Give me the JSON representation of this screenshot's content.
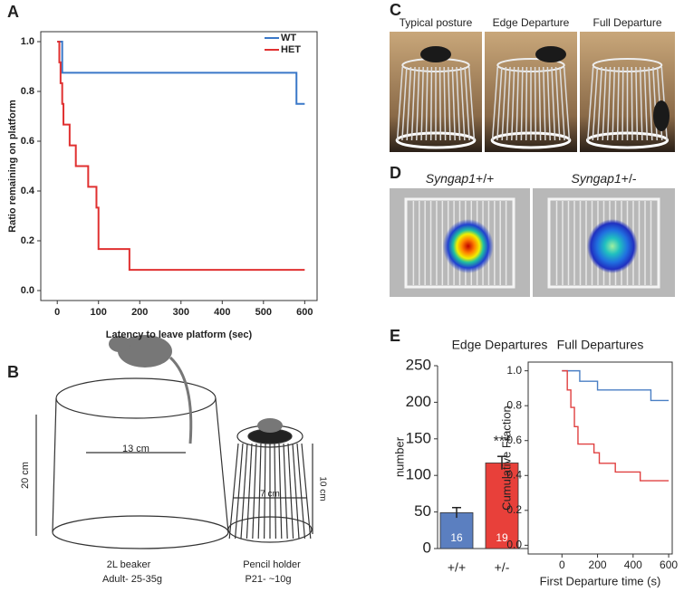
{
  "panel_labels": [
    "A",
    "B",
    "C",
    "D",
    "E"
  ],
  "panel_b": {
    "beaker_height": "20 cm",
    "beaker_width": "13 cm",
    "holder_width": "7 cm",
    "holder_height": "10 cm",
    "beaker_caption": [
      "2L beaker",
      "Adult- 25-35g"
    ],
    "holder_caption": [
      "Pencil holder",
      "P21- ~10g"
    ]
  },
  "panel_c": {
    "photos": [
      "Typical posture",
      "Edge Departure",
      "Full Departure"
    ]
  },
  "panel_d": {
    "genotypes": [
      {
        "gene": "Syngap1",
        "genotype": "+/+"
      },
      {
        "gene": "Syngap1",
        "genotype": "+/-"
      }
    ]
  },
  "chart_data": [
    {
      "type": "step",
      "y_label": "Ratio remaining on platform",
      "x_label": "Latency to leave platform (sec)",
      "xlim": [
        -40,
        630
      ],
      "ylim": [
        -0.04,
        1.04
      ],
      "xticks": [
        0,
        100,
        200,
        300,
        400,
        500,
        600
      ],
      "yticks": [
        {
          "value": 0,
          "label": "0.0"
        },
        0.2,
        0.4,
        0.6,
        0.8,
        {
          "value": 1,
          "label": "1.0"
        }
      ],
      "legend": "upper right",
      "series": [
        {
          "name": "WT",
          "color": "#3a78c8",
          "x": [
            0,
            12,
            580,
            600
          ],
          "values": [
            1,
            0.875,
            0.75,
            0.75
          ]
        },
        {
          "name": "HET",
          "color": "#e03030",
          "x": [
            0,
            5,
            8,
            12,
            15,
            30,
            45,
            75,
            95,
            100,
            175,
            600
          ],
          "values": [
            1,
            0.917,
            0.833,
            0.75,
            0.667,
            0.583,
            0.5,
            0.417,
            0.333,
            0.167,
            0.083,
            0.083
          ]
        }
      ]
    },
    {
      "type": "bar",
      "title": "Edge Departures",
      "y_label": "number",
      "ylim": [
        0,
        250
      ],
      "yticks": [
        0,
        50,
        100,
        150,
        200,
        250
      ],
      "categories": [
        "+/+",
        "+/-"
      ],
      "values": [
        49,
        117
      ],
      "errors": [
        7,
        9
      ],
      "colors": [
        "#5b7fc0",
        "#e8403a"
      ],
      "counts": [
        16,
        19
      ],
      "significance": "***"
    },
    {
      "type": "step",
      "title": "Full Departures",
      "y_label": "Cumulative Fraction",
      "x_label": "First Departure time (s)",
      "xlim": [
        -190,
        620
      ],
      "ylim": [
        -0.05,
        1.05
      ],
      "xticks": [
        0,
        200,
        400,
        600
      ],
      "yticks": [
        {
          "value": 0,
          "label": "0.0"
        },
        0.2,
        0.4,
        0.6,
        0.8,
        {
          "value": 1,
          "label": "1.0"
        }
      ],
      "series": [
        {
          "color": "#4a7fc4",
          "x": [
            0,
            100,
            200,
            500,
            600
          ],
          "values": [
            1,
            0.94,
            0.89,
            0.83,
            0.83
          ]
        },
        {
          "color": "#e04040",
          "x": [
            0,
            30,
            50,
            70,
            90,
            180,
            210,
            300,
            440,
            600
          ],
          "values": [
            1,
            0.89,
            0.79,
            0.68,
            0.58,
            0.53,
            0.47,
            0.42,
            0.37,
            0.37
          ]
        }
      ]
    }
  ]
}
